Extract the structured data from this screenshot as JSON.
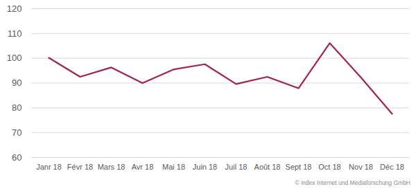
{
  "chart_data": {
    "type": "line",
    "categories": [
      "Janr 18",
      "Févr 18",
      "Mars 18",
      "Avr 18",
      "Mai 18",
      "Juin 18",
      "Juil 18",
      "Août 18",
      "Sept 18",
      "Oct 18",
      "Nov 18",
      "Déc 18"
    ],
    "values": [
      100.2,
      92.5,
      96.3,
      90,
      95.5,
      97.6,
      89.6,
      92.5,
      87.9,
      106.1,
      92.3,
      77.6
    ],
    "color": "#a3204f",
    "ylim": [
      60,
      120
    ],
    "yticks": [
      60,
      70,
      80,
      90,
      100,
      110,
      120
    ],
    "grid": true,
    "caption": "© index Internet und Mediaforschung GmbH"
  }
}
